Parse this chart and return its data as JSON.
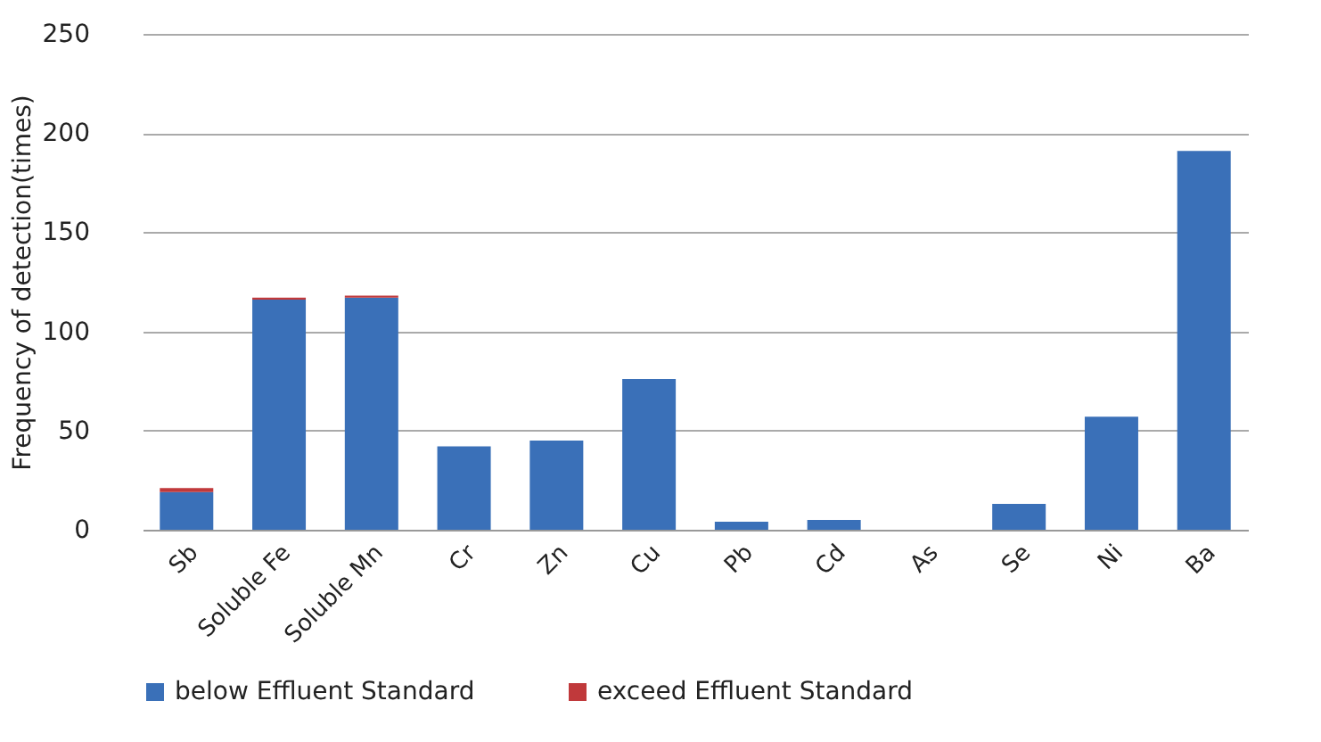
{
  "chart_data": {
    "type": "bar",
    "ylabel": "Frequency of detection(times)",
    "categories": [
      "Sb",
      "Soluble Fe",
      "Soluble Mn",
      "Cr",
      "Zn",
      "Cu",
      "Pb",
      "Cd",
      "As",
      "Se",
      "Ni",
      "Ba"
    ],
    "series": [
      {
        "name": "below Effluent Standard",
        "color": "#3a70b8",
        "values": [
          19,
          116,
          117,
          42,
          45,
          76,
          4,
          5,
          0,
          13,
          57,
          191
        ]
      },
      {
        "name": "exceed Effluent Standard",
        "color": "#c0393b",
        "values": [
          2,
          1,
          1,
          0,
          0,
          0,
          0,
          0,
          0,
          0,
          0,
          0
        ]
      }
    ],
    "stacked": true,
    "ylim": [
      0,
      250
    ],
    "yticks": [
      0,
      50,
      100,
      150,
      200,
      250
    ],
    "grid": "y",
    "legend": "bottom"
  }
}
